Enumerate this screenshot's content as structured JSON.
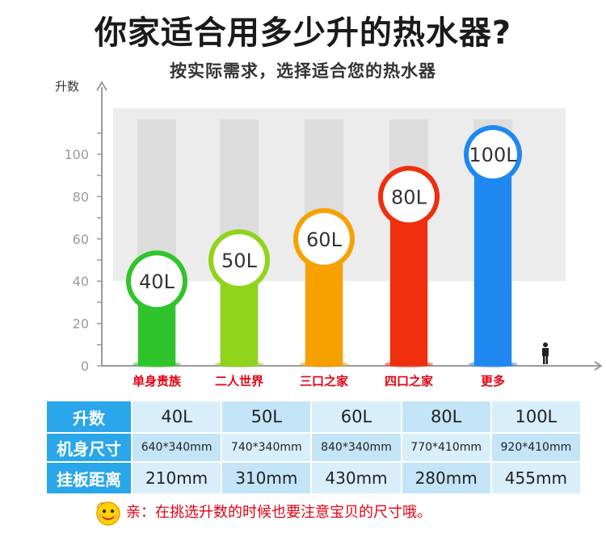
{
  "title": "你家适合用多少升的热水器?",
  "subtitle": "按实际需求，选择适合您的热水器",
  "chart_data": {
    "type": "bar",
    "ylabel": "升数",
    "yticks": [
      0,
      20,
      40,
      60,
      80,
      100
    ],
    "ylim": [
      0,
      115
    ],
    "categories": [
      "单身贵族",
      "二人世界",
      "三口之家",
      "四口之家",
      "更多"
    ],
    "values": [
      40,
      50,
      60,
      80,
      100
    ],
    "labels": [
      "40L",
      "50L",
      "60L",
      "80L",
      "100L"
    ],
    "colors": [
      "#2fc42b",
      "#8fd41a",
      "#f7a100",
      "#ee2e0d",
      "#1e88f0"
    ],
    "grid": false
  },
  "table": {
    "rows": [
      {
        "header": "升数",
        "cells": [
          "40L",
          "50L",
          "60L",
          "80L",
          "100L"
        ]
      },
      {
        "header": "机身尺寸",
        "cells": [
          "640*340mm",
          "740*340mm",
          "840*340mm",
          "770*410mm",
          "920*410mm"
        ]
      },
      {
        "header": "挂板距离",
        "cells": [
          "210mm",
          "310mm",
          "430mm",
          "280mm",
          "455mm"
        ]
      }
    ]
  },
  "note": "亲：在挑选升数的时候也要注意宝贝的尺寸哦。",
  "icons": {
    "person": "person-icon",
    "smiley": "smiley-icon"
  }
}
